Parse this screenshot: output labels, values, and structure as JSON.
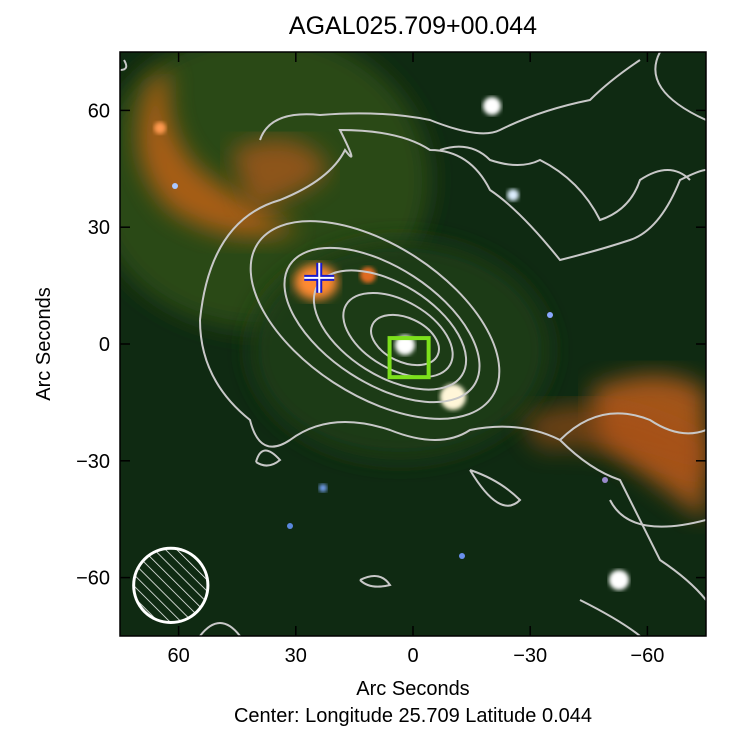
{
  "chart_data": {
    "type": "image",
    "title": "AGAL025.709+00.044",
    "x_label": "Arc Seconds",
    "y_label": "Arc Seconds",
    "caption": "Center:  Longitude 25.709 Latitude 0.044",
    "xlim": [
      75,
      -75
    ],
    "ylim": [
      -75,
      75
    ],
    "xticks": [
      60,
      30,
      0,
      {
        "value": -30,
        "label": "−30"
      },
      {
        "value": -60,
        "label": "−60"
      }
    ],
    "yticks": [
      {
        "value": -60,
        "label": "−60"
      },
      {
        "value": -30,
        "label": "−30"
      },
      0,
      30,
      60
    ],
    "cross": {
      "x": 24,
      "y": 17,
      "color": "#1a1acc"
    },
    "box": {
      "x": 1,
      "y": -3.5,
      "size": 10,
      "color": "#7de01c"
    },
    "beam": {
      "x": 62,
      "y": -62,
      "diameter": 19
    }
  }
}
